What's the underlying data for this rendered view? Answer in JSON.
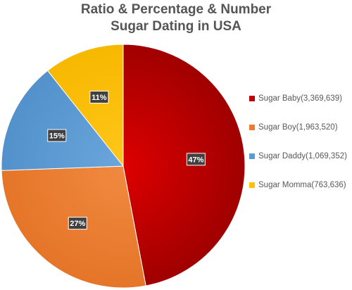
{
  "chart_data": {
    "type": "pie",
    "title": "Ratio & Percentage & Number",
    "subtitle": "Sugar Dating in USA",
    "legend_position": "right",
    "slices": [
      {
        "label": "Sugar Baby(3,369,639)",
        "value": 3369639,
        "percent_label": "47%",
        "color": "#c00000"
      },
      {
        "label": "Sugar Boy(1,963,520)",
        "value": 1963520,
        "percent_label": "27%",
        "color": "#ed7d31"
      },
      {
        "label": "Sugar Daddy(1,069,352)",
        "value": 1069352,
        "percent_label": "15%",
        "color": "#5b9bd5"
      },
      {
        "label": "Sugar Momma(763,636)",
        "value": 763636,
        "percent_label": "11%",
        "color": "#ffc000"
      }
    ]
  }
}
